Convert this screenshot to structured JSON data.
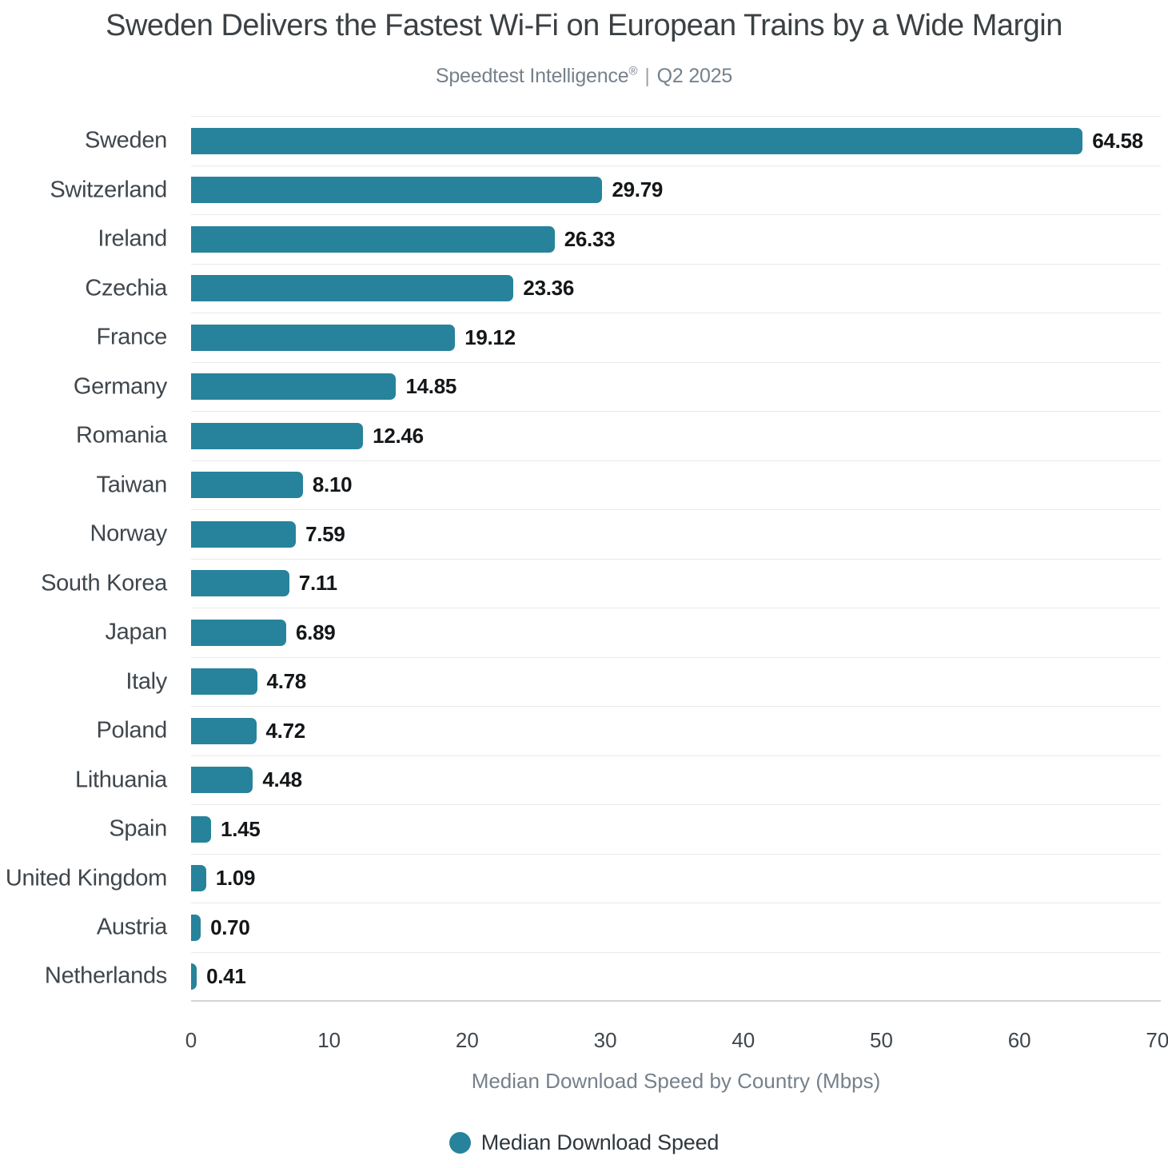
{
  "title": "Sweden Delivers the Fastest Wi-Fi on European Trains by a Wide Margin",
  "subtitle": {
    "brand": "Speedtest Intelligence",
    "registered_mark": "®",
    "separator": "|",
    "period": "Q2 2025"
  },
  "colors": {
    "bar": "#27839B",
    "title_text": "#3B4144",
    "subtitle_text": "#75818C",
    "country_label_text": "#3F464C",
    "value_label_text": "#141719",
    "axis_title_text": "#75818C",
    "row_separator": "#E9EAEB",
    "axis_line": "#D2D5D8",
    "legend_text": "#30383E"
  },
  "chart_data": {
    "type": "bar",
    "orientation": "horizontal",
    "title": "Sweden Delivers the Fastest Wi-Fi on European Trains by a Wide Margin",
    "subtitle": "Speedtest Intelligence® | Q2 2025",
    "categories": [
      "Sweden",
      "Switzerland",
      "Ireland",
      "Czechia",
      "France",
      "Germany",
      "Romania",
      "Taiwan",
      "Norway",
      "South Korea",
      "Japan",
      "Italy",
      "Poland",
      "Lithuania",
      "Spain",
      "United Kingdom",
      "Austria",
      "Netherlands"
    ],
    "values": [
      64.58,
      29.79,
      26.33,
      23.36,
      19.12,
      14.85,
      12.46,
      8.1,
      7.59,
      7.11,
      6.89,
      4.78,
      4.72,
      4.48,
      1.45,
      1.09,
      0.7,
      0.41
    ],
    "value_labels": [
      "64.58",
      "29.79",
      "26.33",
      "23.36",
      "19.12",
      "14.85",
      "12.46",
      "8.10",
      "7.59",
      "7.11",
      "6.89",
      "4.78",
      "4.72",
      "4.48",
      "1.45",
      "1.09",
      "0.70",
      "0.41"
    ],
    "xlabel": "Median Download Speed by Country (Mbps)",
    "ylabel": "",
    "x_ticks": [
      0,
      10,
      20,
      30,
      40,
      50,
      60,
      70
    ],
    "xlim": [
      0,
      70
    ],
    "grid": "row separator lines between categories, light gray",
    "legend": {
      "position": "bottom",
      "items": [
        {
          "label": "Median Download Speed",
          "color": "#27839B"
        }
      ]
    }
  }
}
